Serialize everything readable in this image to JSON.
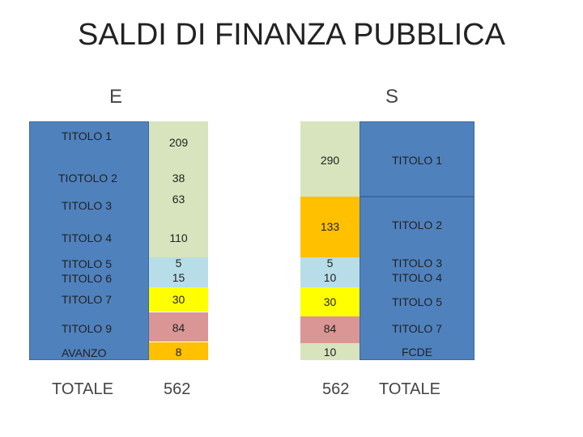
{
  "title": "SALDI DI FINANZA PUBBLICA",
  "entrate": {
    "header": "E",
    "rows": [
      {
        "label": "TITOLO 1",
        "value": "209"
      },
      {
        "label": "TIOTOLO 2",
        "value": "38"
      },
      {
        "label": "TITOLO 3",
        "value": "63"
      },
      {
        "label": "TITOLO 4",
        "value": "110"
      },
      {
        "label": "TITOLO 5",
        "value": "5"
      },
      {
        "label": "TITOLO 6",
        "value": "15"
      },
      {
        "label": "TITOLO 7",
        "value": "30"
      },
      {
        "label": "TITOLO 9",
        "value": "84"
      },
      {
        "label": "AVANZO",
        "value": "8"
      }
    ],
    "total_label": "TOTALE",
    "total_value": "562"
  },
  "spese": {
    "header": "S",
    "rows": [
      {
        "label": "TITOLO 1",
        "value": "290"
      },
      {
        "label": "TITOLO 2",
        "value": "133"
      },
      {
        "label": "TITOLO 3",
        "value": "5"
      },
      {
        "label": "TITOLO 4",
        "value": "10"
      },
      {
        "label": "TITOLO 5",
        "value": "30"
      },
      {
        "label": "TITOLO 7",
        "value": "84"
      },
      {
        "label": "FCDE",
        "value": "10"
      }
    ],
    "total_label": "TOTALE",
    "total_value": "562"
  },
  "colors": {
    "blue": "#4f81bd",
    "green": "#d7e4bd",
    "orange": "#ffc000",
    "lightblue": "#b7dee8",
    "yellow": "#ffff00",
    "pink": "#d99694"
  }
}
